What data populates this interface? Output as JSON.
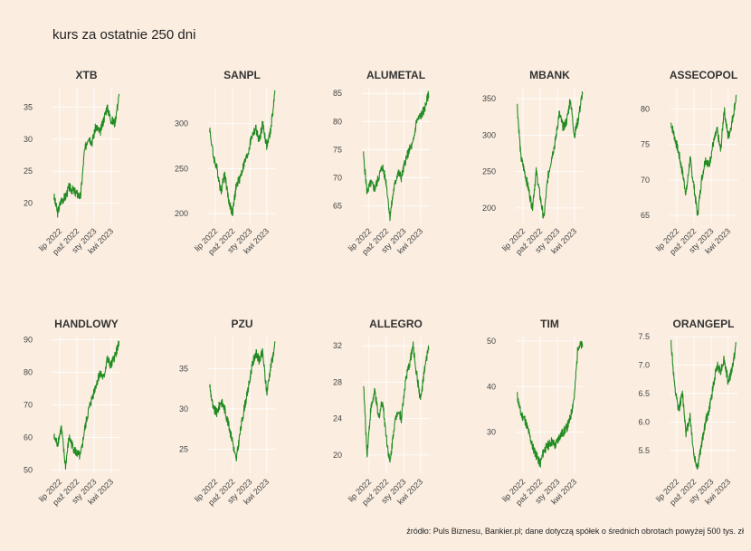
{
  "title": "kurs za ostatnie 250 dni",
  "source": "źródło: Puls Biznesu, Bankier.pl; dane dotyczą spółek o średnich obrotach powyżej 500 tys. zł",
  "x_tick_labels": [
    "lip 2022",
    "paź 2022",
    "sty 2023",
    "kwi 2023"
  ],
  "colors": {
    "background": "#fbeee1",
    "grid": "#ffffff",
    "line": "#228b22"
  },
  "chart_data": [
    {
      "type": "line",
      "title": "XTB",
      "ylim": [
        17,
        38
      ],
      "yticks": [
        20,
        25,
        30,
        35
      ],
      "x": [
        "2022-06-01",
        "2022-06-20",
        "2022-07-10",
        "2022-08-01",
        "2022-08-20",
        "2022-09-10",
        "2022-10-01",
        "2022-10-20",
        "2022-11-10",
        "2022-12-01",
        "2022-12-20",
        "2023-01-10",
        "2023-02-01",
        "2023-02-20",
        "2023-03-10",
        "2023-04-01",
        "2023-04-20",
        "2023-05-15"
      ],
      "values": [
        21,
        18.5,
        20.5,
        21,
        22.5,
        22,
        21.5,
        21,
        28,
        30.5,
        29.5,
        32,
        31,
        33,
        35,
        33,
        32.5,
        37
      ]
    },
    {
      "type": "line",
      "title": "SANPL",
      "ylim": [
        190,
        340
      ],
      "yticks": [
        200,
        250,
        300
      ],
      "x": [
        "2022-06-01",
        "2022-06-20",
        "2022-07-10",
        "2022-08-01",
        "2022-08-20",
        "2022-09-10",
        "2022-10-01",
        "2022-10-20",
        "2022-11-10",
        "2022-12-01",
        "2022-12-20",
        "2023-01-10",
        "2023-02-01",
        "2023-02-20",
        "2023-03-10",
        "2023-04-01",
        "2023-04-20",
        "2023-05-15"
      ],
      "values": [
        295,
        265,
        250,
        225,
        245,
        215,
        200,
        230,
        240,
        255,
        265,
        285,
        295,
        280,
        300,
        275,
        290,
        335
      ]
    },
    {
      "type": "line",
      "title": "ALUMETAL",
      "ylim": [
        62,
        86
      ],
      "yticks": [
        65,
        70,
        75,
        80,
        85
      ],
      "x": [
        "2022-06-01",
        "2022-06-20",
        "2022-07-10",
        "2022-08-01",
        "2022-08-20",
        "2022-09-10",
        "2022-10-01",
        "2022-10-20",
        "2022-11-10",
        "2022-12-01",
        "2022-12-20",
        "2023-01-10",
        "2023-02-01",
        "2023-02-20",
        "2023-03-10",
        "2023-04-01",
        "2023-04-20",
        "2023-05-15"
      ],
      "values": [
        74,
        67.5,
        69,
        68,
        70,
        72,
        69,
        63,
        68,
        71,
        70,
        73,
        75,
        76,
        80,
        81,
        82,
        85
      ]
    },
    {
      "type": "line",
      "title": "MBANK",
      "ylim": [
        180,
        365
      ],
      "yticks": [
        200,
        250,
        300,
        350
      ],
      "x": [
        "2022-06-01",
        "2022-06-20",
        "2022-07-10",
        "2022-08-01",
        "2022-08-20",
        "2022-09-10",
        "2022-10-01",
        "2022-10-20",
        "2022-11-10",
        "2022-12-01",
        "2022-12-20",
        "2023-01-10",
        "2023-02-01",
        "2023-02-20",
        "2023-03-10",
        "2023-04-01",
        "2023-04-20",
        "2023-05-15"
      ],
      "values": [
        340,
        270,
        250,
        225,
        200,
        250,
        215,
        185,
        240,
        270,
        290,
        330,
        310,
        320,
        350,
        300,
        320,
        360
      ]
    },
    {
      "type": "line",
      "title": "ASSECOPOL",
      "ylim": [
        64,
        83
      ],
      "yticks": [
        65,
        70,
        75,
        80
      ],
      "x": [
        "2022-06-01",
        "2022-06-20",
        "2022-07-10",
        "2022-08-01",
        "2022-08-20",
        "2022-09-10",
        "2022-10-01",
        "2022-10-20",
        "2022-11-10",
        "2022-12-01",
        "2022-12-20",
        "2023-01-10",
        "2023-02-01",
        "2023-02-20",
        "2023-03-10",
        "2023-04-01",
        "2023-04-20",
        "2023-05-15"
      ],
      "values": [
        78,
        76,
        74,
        71,
        68,
        73,
        69,
        65,
        70,
        73,
        72,
        75,
        77,
        74,
        80,
        76,
        78,
        82
      ]
    },
    {
      "type": "line",
      "title": "HANDLOWY",
      "ylim": [
        49,
        91
      ],
      "yticks": [
        50,
        60,
        70,
        80,
        90
      ],
      "x": [
        "2022-06-01",
        "2022-06-20",
        "2022-07-10",
        "2022-08-01",
        "2022-08-20",
        "2022-09-10",
        "2022-10-01",
        "2022-10-20",
        "2022-11-10",
        "2022-12-01",
        "2022-12-20",
        "2023-01-10",
        "2023-02-01",
        "2023-02-20",
        "2023-03-10",
        "2023-04-01",
        "2023-04-20",
        "2023-05-15"
      ],
      "values": [
        60,
        58,
        63,
        51,
        60,
        57,
        55,
        54,
        62,
        68,
        72,
        76,
        80,
        78,
        84,
        82,
        85,
        89
      ]
    },
    {
      "type": "line",
      "title": "PZU",
      "ylim": [
        22,
        39
      ],
      "yticks": [
        25,
        30,
        35
      ],
      "x": [
        "2022-06-01",
        "2022-06-20",
        "2022-07-10",
        "2022-08-01",
        "2022-08-20",
        "2022-09-10",
        "2022-10-01",
        "2022-10-20",
        "2022-11-10",
        "2022-12-01",
        "2022-12-20",
        "2023-01-10",
        "2023-02-01",
        "2023-02-20",
        "2023-03-10",
        "2023-04-01",
        "2023-04-20",
        "2023-05-15"
      ],
      "values": [
        33,
        30,
        29.5,
        31,
        30,
        28,
        26,
        23.5,
        27,
        30,
        32,
        35,
        37,
        36,
        37,
        32,
        35,
        38
      ]
    },
    {
      "type": "line",
      "title": "ALLEGRO",
      "ylim": [
        18,
        33
      ],
      "yticks": [
        20,
        24,
        28,
        32
      ],
      "x": [
        "2022-06-01",
        "2022-06-20",
        "2022-07-10",
        "2022-08-01",
        "2022-08-20",
        "2022-09-10",
        "2022-10-01",
        "2022-10-20",
        "2022-11-10",
        "2022-12-01",
        "2022-12-20",
        "2023-01-10",
        "2023-02-01",
        "2023-02-20",
        "2023-03-10",
        "2023-04-01",
        "2023-04-20",
        "2023-05-15"
      ],
      "values": [
        28,
        20,
        25,
        27,
        24,
        26,
        22,
        19,
        23,
        25,
        24,
        28,
        30,
        32,
        29,
        26,
        29,
        32
      ]
    },
    {
      "type": "line",
      "title": "TIM",
      "ylim": [
        21,
        51
      ],
      "yticks": [
        30,
        40,
        50
      ],
      "x": [
        "2022-06-01",
        "2022-06-20",
        "2022-07-10",
        "2022-08-01",
        "2022-08-20",
        "2022-09-10",
        "2022-10-01",
        "2022-10-20",
        "2022-11-10",
        "2022-12-01",
        "2022-12-20",
        "2023-01-10",
        "2023-02-01",
        "2023-02-20",
        "2023-03-10",
        "2023-04-01",
        "2023-04-20",
        "2023-05-15"
      ],
      "values": [
        38,
        34,
        33,
        30,
        27,
        25,
        23,
        26,
        27,
        28,
        27,
        29,
        30,
        31,
        33,
        38,
        49,
        49
      ]
    },
    {
      "type": "line",
      "title": "ORANGEPL",
      "ylim": [
        5.1,
        7.5
      ],
      "yticks": [
        5.5,
        6.0,
        6.5,
        7.0,
        7.5
      ],
      "ytick_labels": [
        "5.5",
        "6.0",
        "6.5",
        "7.0",
        "7.5"
      ],
      "x": [
        "2022-06-01",
        "2022-06-20",
        "2022-07-10",
        "2022-08-01",
        "2022-08-20",
        "2022-09-10",
        "2022-10-01",
        "2022-10-20",
        "2022-11-10",
        "2022-12-01",
        "2022-12-20",
        "2023-01-10",
        "2023-02-01",
        "2023-02-20",
        "2023-03-10",
        "2023-04-01",
        "2023-04-20",
        "2023-05-15"
      ],
      "values": [
        7.4,
        6.6,
        6.2,
        6.5,
        5.8,
        6.1,
        5.4,
        5.2,
        5.6,
        6.0,
        6.2,
        6.6,
        7.0,
        6.9,
        7.1,
        6.7,
        6.9,
        7.4
      ]
    }
  ]
}
